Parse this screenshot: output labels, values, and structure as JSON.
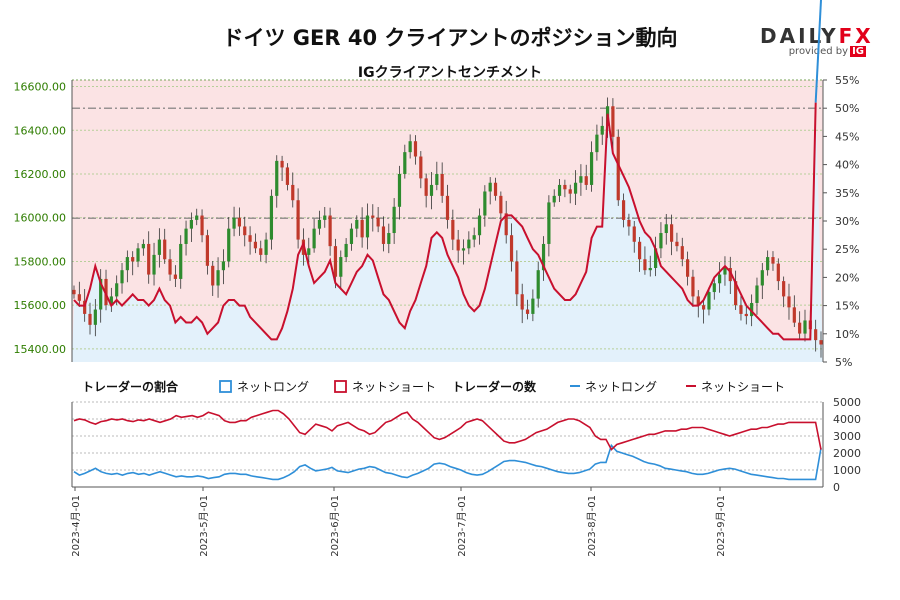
{
  "title": "ドイツ GER 40 クライアントのポジション動向",
  "logo": {
    "main_a": "DAILY",
    "main_b": "FX",
    "provided": "provided by",
    "ig": "IG"
  },
  "colors": {
    "long": "#2f8fd8",
    "short": "#c8102e",
    "candle_up": "#2e8b2e",
    "candle_down": "#c0392b",
    "price_axis": "#2e7d00"
  },
  "chart_data": [
    {
      "type": "candlestick",
      "title": "IGクライアントセンチメント",
      "y_left_ticks": [
        "15400.00",
        "15600.00",
        "15800.00",
        "16000.00",
        "16200.00",
        "16400.00",
        "16600.00"
      ],
      "ylim_left": [
        15340,
        16630
      ],
      "y_right_ticks": [
        "5%",
        "10%",
        "15%",
        "20%",
        "25%",
        "30%",
        "35%",
        "40%",
        "45%",
        "50%",
        "55%"
      ],
      "ylim_right": [
        5,
        55
      ],
      "reference_levels_pct": [
        50,
        30.5
      ],
      "x_ticks": [
        "2023-4月-01",
        "2023-5月-01",
        "2023-6月-01",
        "2023-7月-01",
        "2023-8月-01",
        "2023-9月-01"
      ],
      "price_close": [
        15650,
        15620,
        15560,
        15510,
        15580,
        15720,
        15600,
        15640,
        15700,
        15760,
        15820,
        15800,
        15860,
        15880,
        15740,
        15830,
        15900,
        15810,
        15740,
        15720,
        15880,
        15950,
        15990,
        16010,
        15920,
        15780,
        15690,
        15760,
        15800,
        15950,
        16000,
        15960,
        15920,
        15890,
        15860,
        15830,
        15900,
        16100,
        16260,
        16230,
        16150,
        16080,
        15900,
        15830,
        15860,
        15950,
        15990,
        16010,
        15870,
        15730,
        15820,
        15880,
        15950,
        15990,
        15910,
        16010,
        16000,
        15960,
        15880,
        15930,
        16050,
        16200,
        16300,
        16350,
        16280,
        16180,
        16100,
        16150,
        16200,
        16100,
        15990,
        15900,
        15850,
        15860,
        15900,
        15920,
        16010,
        16120,
        16160,
        16100,
        16020,
        15920,
        15800,
        15650,
        15580,
        15560,
        15630,
        15760,
        15880,
        16070,
        16100,
        16150,
        16130,
        16110,
        16160,
        16190,
        16150,
        16300,
        16380,
        16420,
        16510,
        16370,
        16080,
        15990,
        15960,
        15890,
        15810,
        15760,
        15770,
        15860,
        15930,
        15970,
        15890,
        15870,
        15810,
        15730,
        15640,
        15600,
        15580,
        15660,
        15700,
        15740,
        15770,
        15710,
        15600,
        15560,
        15550,
        15610,
        15690,
        15760,
        15820,
        15790,
        15710,
        15640,
        15590,
        15520,
        15470,
        15530,
        15490,
        15440,
        15420
      ],
      "long_pct": [
        16,
        15,
        15,
        18,
        22,
        19,
        17,
        15,
        16,
        15,
        16,
        17,
        16,
        16,
        15,
        16,
        18,
        16,
        15,
        12,
        13,
        12,
        12,
        13,
        12,
        10,
        11,
        12,
        15,
        16,
        16,
        15,
        15,
        13,
        12,
        11,
        10,
        9,
        9,
        11,
        14,
        18,
        24,
        26,
        22,
        19,
        20,
        21,
        23,
        19,
        18,
        17,
        19,
        21,
        22,
        24,
        23,
        20,
        17,
        16,
        14,
        12,
        11,
        14,
        16,
        19,
        22,
        27,
        28,
        27,
        24,
        22,
        20,
        17,
        15,
        14,
        15,
        18,
        22,
        26,
        30,
        31,
        31,
        30,
        29,
        27,
        25,
        24,
        22,
        20,
        18,
        17,
        16,
        16,
        17,
        19,
        21,
        27,
        29,
        29,
        49,
        42,
        40,
        38,
        36,
        33,
        30,
        28,
        27,
        25,
        22,
        21,
        20,
        19,
        18,
        16,
        15,
        15,
        16,
        18,
        20,
        21,
        22,
        21,
        19,
        17,
        15,
        14,
        13,
        12,
        11,
        10,
        10,
        9,
        9,
        9,
        9,
        9,
        9,
        51
      ],
      "short_pct": [
        84,
        85,
        85,
        82,
        78,
        81,
        83,
        85,
        84,
        85,
        84,
        83,
        84,
        84,
        85,
        84,
        82,
        84,
        85,
        88,
        87,
        88,
        88,
        87,
        88,
        90,
        89,
        88,
        85,
        84,
        84,
        85,
        85,
        87,
        88,
        89,
        90,
        91,
        91,
        89,
        86,
        82,
        76,
        74,
        78,
        81,
        80,
        79,
        77,
        81,
        82,
        83,
        81,
        79,
        78,
        76,
        77,
        80,
        83,
        84,
        86,
        88,
        89,
        86,
        84,
        81,
        78,
        73,
        72,
        73,
        76,
        78,
        80,
        83,
        85,
        86,
        85,
        82,
        78,
        74,
        70,
        69,
        69,
        70,
        71,
        73,
        75,
        76,
        78,
        80,
        82,
        83,
        84,
        84,
        83,
        81,
        79,
        73,
        71,
        71,
        51,
        58,
        60,
        62,
        64,
        67,
        70,
        72,
        73,
        75,
        78,
        79,
        80,
        81,
        82,
        84,
        85,
        85,
        84,
        82,
        80,
        79,
        78,
        79,
        81,
        83,
        85,
        86,
        87,
        88,
        89,
        90,
        90,
        91,
        91,
        91,
        91,
        91,
        91,
        49
      ],
      "series": [
        {
          "name": "ネットロング"
        },
        {
          "name": "ネットショート"
        }
      ]
    },
    {
      "type": "line",
      "ylim": [
        0,
        5000
      ],
      "y_ticks": [
        "0",
        "1000",
        "2000",
        "3000",
        "4000",
        "5000"
      ],
      "legend_ratio_title": "トレーダーの割合",
      "legend_count_title": "トレーダーの数",
      "series": [
        {
          "name": "ネットロング",
          "values": [
            900,
            700,
            800,
            950,
            1100,
            900,
            800,
            750,
            800,
            700,
            800,
            850,
            750,
            800,
            700,
            800,
            900,
            800,
            700,
            600,
            650,
            600,
            600,
            650,
            600,
            500,
            550,
            600,
            750,
            800,
            800,
            750,
            750,
            650,
            600,
            550,
            500,
            450,
            450,
            550,
            700,
            900,
            1200,
            1300,
            1100,
            950,
            1000,
            1050,
            1150,
            950,
            900,
            850,
            950,
            1050,
            1100,
            1200,
            1150,
            1000,
            850,
            800,
            700,
            600,
            550,
            700,
            800,
            950,
            1100,
            1350,
            1400,
            1350,
            1200,
            1100,
            1000,
            850,
            750,
            700,
            750,
            900,
            1100,
            1300,
            1500,
            1550,
            1550,
            1500,
            1450,
            1350,
            1250,
            1200,
            1100,
            1000,
            900,
            850,
            800,
            800,
            850,
            950,
            1050,
            1350,
            1450,
            1450,
            2450,
            2100,
            2000,
            1900,
            1800,
            1650,
            1500,
            1400,
            1350,
            1250,
            1100,
            1050,
            1000,
            950,
            900,
            800,
            750,
            750,
            800,
            900,
            1000,
            1050,
            1100,
            1050,
            950,
            850,
            750,
            700,
            650,
            600,
            550,
            500,
            500,
            450,
            450,
            450,
            450,
            450,
            450,
            2300
          ]
        },
        {
          "name": "ネットショート",
          "values": [
            3900,
            4000,
            3950,
            3800,
            3700,
            3850,
            3900,
            4000,
            3950,
            4000,
            3900,
            3850,
            3950,
            3900,
            4000,
            3900,
            3800,
            3900,
            4000,
            4200,
            4100,
            4150,
            4200,
            4100,
            4200,
            4400,
            4300,
            4200,
            3900,
            3800,
            3800,
            3900,
            3900,
            4100,
            4200,
            4300,
            4400,
            4500,
            4500,
            4300,
            4000,
            3600,
            3200,
            3100,
            3400,
            3700,
            3600,
            3500,
            3300,
            3600,
            3700,
            3800,
            3600,
            3400,
            3300,
            3100,
            3200,
            3500,
            3800,
            3900,
            4100,
            4300,
            4400,
            4000,
            3800,
            3500,
            3200,
            2900,
            2800,
            2900,
            3100,
            3300,
            3500,
            3800,
            3900,
            4000,
            3900,
            3600,
            3300,
            3000,
            2700,
            2600,
            2600,
            2700,
            2800,
            3000,
            3200,
            3300,
            3400,
            3600,
            3800,
            3900,
            4000,
            4000,
            3900,
            3700,
            3500,
            3000,
            2800,
            2800,
            2200,
            2500,
            2600,
            2700,
            2800,
            2900,
            3000,
            3100,
            3100,
            3200,
            3300,
            3300,
            3300,
            3400,
            3400,
            3500,
            3500,
            3500,
            3400,
            3300,
            3200,
            3100,
            3000,
            3100,
            3200,
            3300,
            3400,
            3400,
            3500,
            3500,
            3600,
            3700,
            3700,
            3800,
            3800,
            3800,
            3800,
            3800,
            3800,
            2200
          ]
        }
      ]
    }
  ]
}
